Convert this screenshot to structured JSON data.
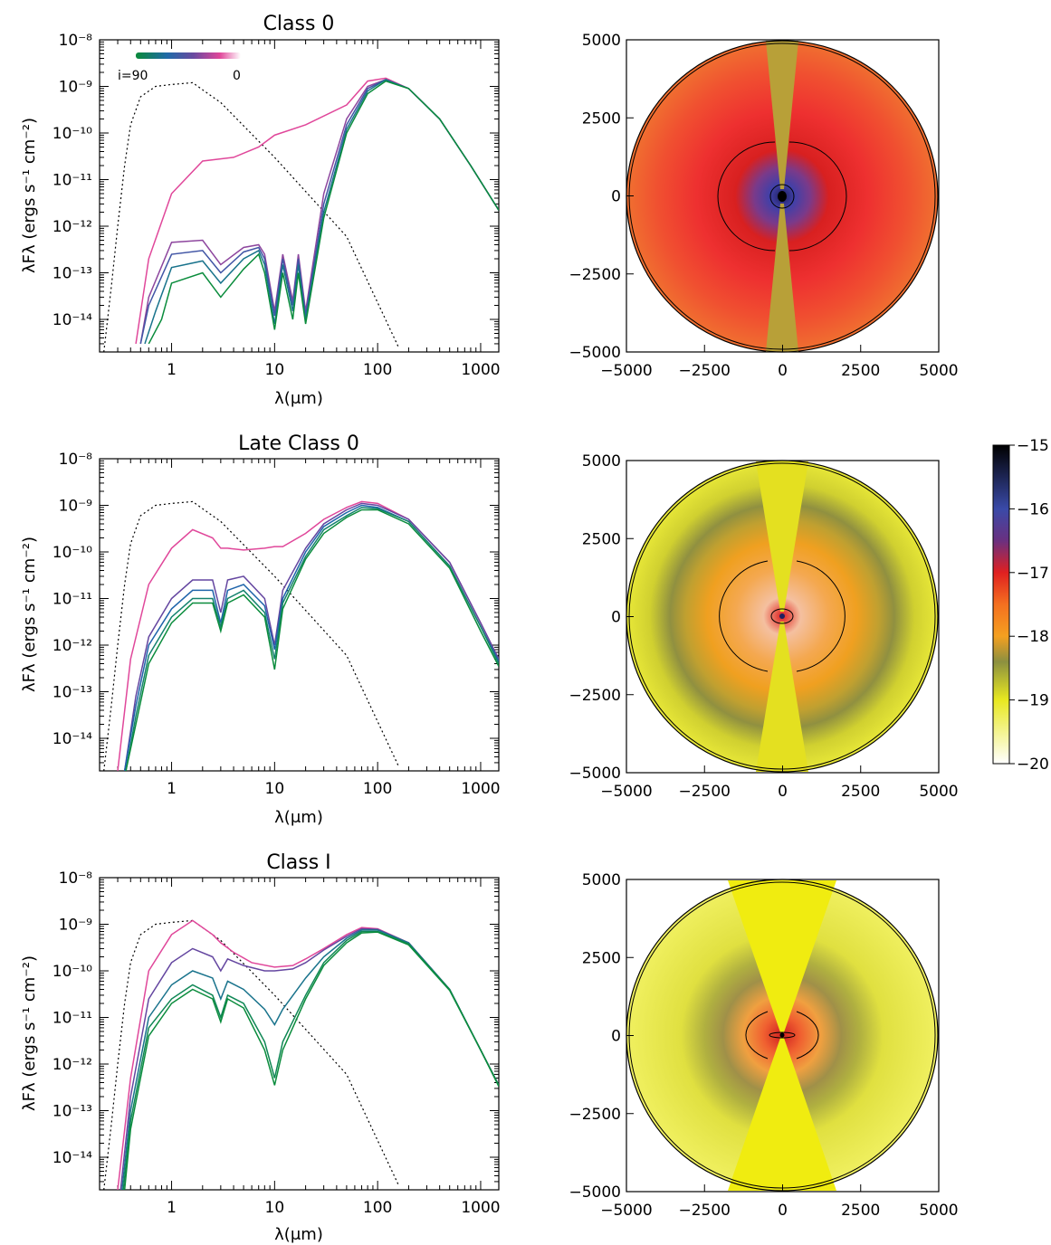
{
  "panels": [
    {
      "title": "Class 0",
      "xlabel": "λ(μm)",
      "ylabel": "λFλ (ergs s⁻¹ cm⁻²)"
    },
    {
      "title": "Late Class 0",
      "xlabel": "λ(μm)",
      "ylabel": "λFλ (ergs s⁻¹ cm⁻²)"
    },
    {
      "title": "Class I",
      "xlabel": "λ(μm)",
      "ylabel": "λFλ (ergs s⁻¹ cm⁻²)"
    }
  ],
  "inclination_bar": {
    "left": "i=90",
    "right": "0",
    "colors": [
      "#0a8a3a",
      "#1f6aa8",
      "#6a4aa0",
      "#e0479a",
      "#ffffff"
    ]
  },
  "colorbar": {
    "ticks": [
      "−15",
      "−16",
      "−17",
      "−18",
      "−19",
      "−20"
    ]
  },
  "chart_data": [
    {
      "type": "line",
      "title": "Class 0",
      "xlabel": "λ(μm)",
      "ylabel": "λFλ (ergs s⁻¹ cm⁻²)",
      "xscale": "log",
      "yscale": "log",
      "xlim": [
        0.2,
        1500
      ],
      "ylim": [
        2e-15,
        1e-08
      ],
      "xticks": [
        "1",
        "10",
        "100",
        "1000"
      ],
      "yticks": [
        "10⁻⁸",
        "10⁻⁹",
        "10⁻¹⁰",
        "10⁻¹¹",
        "10⁻¹²",
        "10⁻¹³",
        "10⁻¹⁴"
      ],
      "stellar_photosphere": {
        "x": [
          0.22,
          0.26,
          0.3,
          0.35,
          0.4,
          0.5,
          0.7,
          1.0,
          1.6,
          3,
          10,
          50,
          160
        ],
        "y": [
          2e-15,
          5e-14,
          1e-12,
          2e-11,
          1.5e-10,
          6e-10,
          1e-09,
          1.1e-09,
          1.2e-09,
          4.5e-10,
          3e-11,
          6e-13,
          2.5e-15
        ]
      },
      "series": [
        {
          "inclination": 0,
          "x": [
            0.45,
            0.6,
            1,
            2,
            4,
            7,
            10,
            20,
            50,
            80,
            120,
            200,
            400,
            800,
            1500
          ],
          "y": [
            3e-15,
            2e-13,
            5e-12,
            2.5e-11,
            3e-11,
            5e-11,
            9e-11,
            1.5e-10,
            4e-10,
            1.3e-09,
            1.5e-09,
            9e-10,
            2e-10,
            2e-11,
            2.2e-12
          ]
        },
        {
          "inclination": 20,
          "x": [
            0.5,
            0.6,
            1,
            2,
            3,
            5,
            7,
            8,
            10,
            12,
            15,
            17,
            20,
            30,
            50,
            80,
            120,
            200,
            400,
            800,
            1500
          ],
          "y": [
            3e-15,
            3e-14,
            4.5e-13,
            5e-13,
            1.5e-13,
            3.5e-13,
            4e-13,
            2.5e-13,
            1.5e-14,
            2.5e-13,
            2.5e-14,
            2.5e-13,
            1.5e-14,
            5e-12,
            2e-10,
            1e-09,
            1.4e-09,
            9e-10,
            2e-10,
            2e-11,
            2.2e-12
          ]
        },
        {
          "inclination": 40,
          "x": [
            0.5,
            0.6,
            1,
            2,
            3,
            5,
            7,
            8,
            10,
            12,
            15,
            17,
            20,
            30,
            50,
            80,
            120,
            200,
            400,
            800,
            1500
          ],
          "y": [
            3e-15,
            2e-14,
            2.5e-13,
            3e-13,
            1e-13,
            2.8e-13,
            3.5e-13,
            2e-13,
            1.2e-14,
            2e-13,
            2e-14,
            2e-13,
            1.2e-14,
            3e-12,
            1.5e-10,
            9e-10,
            1.4e-09,
            9e-10,
            2e-10,
            2e-11,
            2.2e-12
          ]
        },
        {
          "inclination": 60,
          "x": [
            0.55,
            0.7,
            1,
            2,
            3,
            5,
            7,
            8,
            10,
            12,
            15,
            17,
            20,
            30,
            50,
            80,
            120,
            200,
            400,
            800,
            1500
          ],
          "y": [
            3e-15,
            1.5e-14,
            1.3e-13,
            1.8e-13,
            6e-14,
            2e-13,
            3e-13,
            1.5e-13,
            8e-15,
            1.5e-13,
            1.5e-14,
            1.5e-13,
            1e-14,
            2e-12,
            1.2e-10,
            8e-10,
            1.4e-09,
            9e-10,
            2e-10,
            2e-11,
            2.2e-12
          ]
        },
        {
          "inclination": 90,
          "x": [
            0.6,
            0.8,
            1,
            2,
            3,
            5,
            7,
            8,
            10,
            12,
            15,
            17,
            20,
            30,
            50,
            80,
            120,
            200,
            400,
            800,
            1500
          ],
          "y": [
            3e-15,
            1e-14,
            6e-14,
            1e-13,
            3e-14,
            1.2e-13,
            2.5e-13,
            1e-13,
            6e-15,
            1e-13,
            1e-14,
            1e-13,
            8e-15,
            1.5e-12,
            1e-10,
            7e-10,
            1.3e-09,
            9e-10,
            2e-10,
            2e-11,
            2.2e-12
          ]
        }
      ]
    },
    {
      "type": "line",
      "title": "Late Class 0",
      "xlabel": "λ(μm)",
      "ylabel": "λFλ (ergs s⁻¹ cm⁻²)",
      "xscale": "log",
      "yscale": "log",
      "xlim": [
        0.2,
        1500
      ],
      "ylim": [
        2e-15,
        1e-08
      ],
      "xticks": [
        "1",
        "10",
        "100",
        "1000"
      ],
      "yticks": [
        "10⁻⁸",
        "10⁻⁹",
        "10⁻¹⁰",
        "10⁻¹¹",
        "10⁻¹²",
        "10⁻¹³",
        "10⁻¹⁴"
      ],
      "stellar_photosphere": {
        "x": [
          0.22,
          0.26,
          0.3,
          0.35,
          0.4,
          0.5,
          0.7,
          1.0,
          1.6,
          3,
          10,
          50,
          160
        ],
        "y": [
          2e-15,
          5e-14,
          1e-12,
          2e-11,
          1.5e-10,
          6e-10,
          1e-09,
          1.1e-09,
          1.2e-09,
          4.5e-10,
          3e-11,
          6e-13,
          2.5e-15
        ]
      },
      "series": [
        {
          "inclination": 0,
          "x": [
            0.3,
            0.4,
            0.6,
            1,
            1.6,
            2.5,
            3,
            3.5,
            5,
            8,
            10,
            12,
            20,
            30,
            50,
            70,
            100,
            200,
            500,
            1000,
            1500
          ],
          "y": [
            2e-15,
            5e-13,
            2e-11,
            1.2e-10,
            3e-10,
            2e-10,
            1.2e-10,
            1.2e-10,
            1.1e-10,
            1.2e-10,
            1.3e-10,
            1.3e-10,
            2.5e-10,
            5e-10,
            9e-10,
            1.2e-09,
            1.1e-09,
            5e-10,
            6e-11,
            3e-12,
            5e-13
          ]
        },
        {
          "inclination": 30,
          "x": [
            0.35,
            0.45,
            0.6,
            1,
            1.6,
            2.5,
            3,
            3.5,
            5,
            8,
            10,
            12,
            20,
            30,
            50,
            70,
            100,
            200,
            500,
            1000,
            1500
          ],
          "y": [
            2e-15,
            8e-14,
            1.5e-12,
            1e-11,
            2.5e-11,
            2.5e-11,
            5e-12,
            2.5e-11,
            3e-11,
            1e-11,
            1e-12,
            1.5e-11,
            1.2e-10,
            4e-10,
            8e-10,
            1.1e-09,
            1e-09,
            5e-10,
            6e-11,
            3e-12,
            5e-13
          ]
        },
        {
          "inclination": 50,
          "x": [
            0.35,
            0.45,
            0.6,
            1,
            1.6,
            2.5,
            3,
            3.5,
            5,
            8,
            10,
            12,
            20,
            30,
            50,
            70,
            100,
            200,
            500,
            1000,
            1500
          ],
          "y": [
            2e-15,
            5e-14,
            1e-12,
            6e-12,
            1.5e-11,
            1.5e-11,
            3e-12,
            1.5e-11,
            2e-11,
            7e-12,
            8e-13,
            1e-11,
            1e-10,
            3.5e-10,
            7e-10,
            1e-09,
            9e-10,
            4.5e-10,
            5e-11,
            2.5e-12,
            4.5e-13
          ]
        },
        {
          "inclination": 70,
          "x": [
            0.36,
            0.45,
            0.6,
            1,
            1.6,
            2.5,
            3,
            3.5,
            5,
            8,
            10,
            12,
            20,
            30,
            50,
            70,
            100,
            200,
            500,
            1000,
            1500
          ],
          "y": [
            2e-15,
            3e-14,
            6e-13,
            4e-12,
            1e-11,
            1e-11,
            2.5e-12,
            1e-11,
            1.5e-11,
            5e-12,
            5e-13,
            8e-12,
            8e-11,
            3e-10,
            6e-10,
            9e-10,
            8.5e-10,
            4.5e-10,
            5e-11,
            2.5e-12,
            4e-13
          ]
        },
        {
          "inclination": 90,
          "x": [
            0.36,
            0.45,
            0.6,
            1,
            1.6,
            2.5,
            3,
            3.5,
            5,
            8,
            10,
            12,
            20,
            30,
            50,
            70,
            100,
            200,
            500,
            1000,
            1500
          ],
          "y": [
            2e-15,
            2e-14,
            4e-13,
            3e-12,
            8e-12,
            8e-12,
            2e-12,
            8e-12,
            1.2e-11,
            4e-12,
            3e-13,
            6e-12,
            7e-11,
            2.5e-10,
            5.5e-10,
            8e-10,
            8e-10,
            4e-10,
            4.5e-11,
            2e-12,
            3.5e-13
          ]
        }
      ]
    },
    {
      "type": "line",
      "title": "Class I",
      "xlabel": "λ(μm)",
      "ylabel": "λFλ (ergs s⁻¹ cm⁻²)",
      "xscale": "log",
      "yscale": "log",
      "xlim": [
        0.2,
        1500
      ],
      "ylim": [
        2e-15,
        1e-08
      ],
      "xticks": [
        "1",
        "10",
        "100",
        "1000"
      ],
      "yticks": [
        "10⁻⁸",
        "10⁻⁹",
        "10⁻¹⁰",
        "10⁻¹¹",
        "10⁻¹²",
        "10⁻¹³",
        "10⁻¹⁴"
      ],
      "stellar_photosphere": {
        "x": [
          0.22,
          0.26,
          0.3,
          0.35,
          0.4,
          0.5,
          0.7,
          1.0,
          1.6,
          3,
          10,
          50,
          160
        ],
        "y": [
          2e-15,
          5e-14,
          1e-12,
          2e-11,
          1.5e-10,
          6e-10,
          1e-09,
          1.1e-09,
          1.2e-09,
          4.5e-10,
          3e-11,
          6e-13,
          2.5e-15
        ]
      },
      "series": [
        {
          "inclination": 0,
          "x": [
            0.3,
            0.4,
            0.6,
            1,
            1.6,
            2.5,
            3,
            4,
            6,
            10,
            15,
            20,
            30,
            50,
            70,
            100,
            200,
            500,
            1000,
            1500
          ],
          "y": [
            2e-15,
            5e-13,
            1e-10,
            6e-10,
            1.2e-09,
            6e-10,
            4e-10,
            2.5e-10,
            1.5e-10,
            1.2e-10,
            1.3e-10,
            1.8e-10,
            3e-10,
            6e-10,
            8.5e-10,
            8e-10,
            4e-10,
            4e-11,
            2e-12,
            3.5e-13
          ]
        },
        {
          "inclination": 30,
          "x": [
            0.32,
            0.4,
            0.6,
            1,
            1.6,
            2.5,
            3,
            3.5,
            5,
            8,
            10,
            15,
            20,
            30,
            50,
            70,
            100,
            200,
            500,
            1000,
            1500
          ],
          "y": [
            2e-15,
            2e-13,
            2.5e-11,
            1.5e-10,
            3e-10,
            2e-10,
            1e-10,
            1.8e-10,
            1.3e-10,
            1e-10,
            1e-10,
            1.1e-10,
            1.5e-10,
            2.8e-10,
            5.5e-10,
            8e-10,
            7.8e-10,
            4e-10,
            4e-11,
            2e-12,
            3.5e-13
          ]
        },
        {
          "inclination": 60,
          "x": [
            0.33,
            0.4,
            0.6,
            1,
            1.6,
            2.5,
            3,
            3.5,
            5,
            8,
            10,
            12,
            20,
            30,
            50,
            70,
            100,
            200,
            500,
            1000,
            1500
          ],
          "y": [
            2e-15,
            1e-13,
            1e-11,
            5e-11,
            1e-10,
            7e-11,
            2.5e-11,
            6e-11,
            4e-11,
            1.5e-11,
            7e-12,
            1.5e-11,
            7e-11,
            2e-10,
            5e-10,
            7.5e-10,
            7.5e-10,
            4e-10,
            4e-11,
            2e-12,
            3.5e-13
          ]
        },
        {
          "inclination": 80,
          "x": [
            0.34,
            0.4,
            0.6,
            1,
            1.6,
            2.5,
            3,
            3.5,
            5,
            8,
            10,
            12,
            20,
            30,
            50,
            70,
            100,
            200,
            500,
            1000,
            1500
          ],
          "y": [
            2e-15,
            6e-14,
            6e-12,
            2.5e-11,
            5e-11,
            3e-11,
            1e-11,
            3e-11,
            2e-11,
            3e-12,
            5e-13,
            3e-12,
            3e-11,
            1.5e-10,
            4.5e-10,
            7e-10,
            7e-10,
            3.8e-10,
            4e-11,
            2e-12,
            3.5e-13
          ]
        },
        {
          "inclination": 90,
          "x": [
            0.35,
            0.4,
            0.6,
            1,
            1.6,
            2.5,
            3,
            3.5,
            5,
            8,
            10,
            12,
            20,
            30,
            50,
            70,
            100,
            200,
            500,
            1000,
            1500
          ],
          "y": [
            2e-15,
            4e-14,
            4e-12,
            2e-11,
            4e-11,
            2.5e-11,
            8e-12,
            2.5e-11,
            1.6e-11,
            2e-12,
            3.5e-13,
            2e-12,
            2.5e-11,
            1.3e-10,
            4e-10,
            6.5e-10,
            6.8e-10,
            3.6e-10,
            3.8e-11,
            2e-12,
            3.3e-13
          ]
        }
      ]
    },
    {
      "type": "heatmap",
      "xlim": [
        -5000,
        5000
      ],
      "ylim": [
        -5000,
        5000
      ],
      "xticks": [
        "−5000",
        "−2500",
        "0",
        "2500",
        "5000"
      ],
      "yticks": [
        "5000",
        "2500",
        "0",
        "−2500",
        "−5000"
      ],
      "colorbar_range": [
        -20,
        -15
      ],
      "panels": [
        {
          "name": "Class 0",
          "outflow_cavity_color": "#b8a038",
          "envelope_colors": [
            "#3a3aa0",
            "#6a3a8a",
            "#d82020",
            "#ee3030",
            "#f05030",
            "#f07030"
          ],
          "contour_radii": [
            300,
            1800
          ]
        },
        {
          "name": "Late Class 0",
          "outflow_cavity_color": "#e4e020",
          "envelope_colors": [
            "#e04020",
            "#f4c080",
            "#f4a020",
            "#f0a020",
            "#909040",
            "#d8d830",
            "#e8e838"
          ],
          "contour_radii": [
            200,
            1800
          ]
        },
        {
          "name": "Class I",
          "outflow_cavity_color": "#f0ec10",
          "envelope_colors": [
            "#e03020",
            "#f08030",
            "#e0a040",
            "#909048",
            "#c0c040",
            "#e8e840",
            "#f0f060"
          ],
          "contour_radii": [
            150,
            1300
          ]
        }
      ]
    }
  ]
}
